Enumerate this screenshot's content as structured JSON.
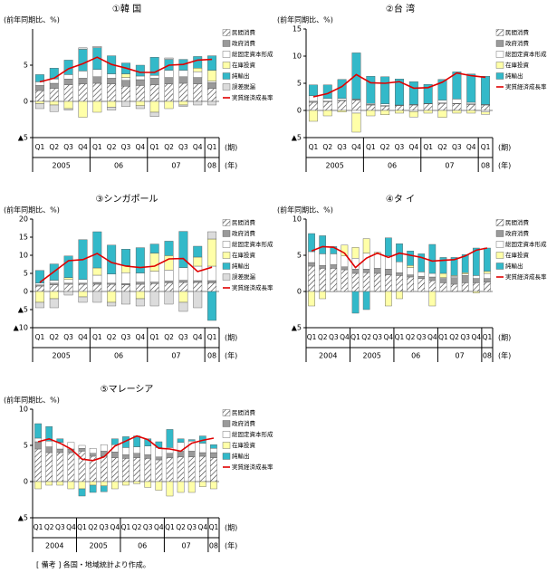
{
  "chart_data": [
    {
      "type": "bar",
      "title": "①韓 国",
      "y_label": "(前年同期比、%)",
      "x_unit": "(期)",
      "year_unit": "(年)",
      "categories": [
        "Q1",
        "Q2",
        "Q3",
        "Q4",
        "Q1",
        "Q2",
        "Q3",
        "Q4",
        "Q1",
        "Q2",
        "Q3",
        "Q4",
        "Q1"
      ],
      "years": [
        "2005",
        "06",
        "07",
        "08"
      ],
      "ylim": [
        -5,
        10
      ],
      "yticks": [
        {
          "value": -5,
          "label": "▲5"
        },
        0,
        5
      ],
      "series": [
        {
          "name": "民間消費",
          "color": "#ffffff",
          "pattern": "hatch",
          "values": [
            1.5,
            1.8,
            2.3,
            2.4,
            2.5,
            2.4,
            2.1,
            2.2,
            2.3,
            2.4,
            2.5,
            2.4,
            1.8
          ]
        },
        {
          "name": "政府消費",
          "color": "#9a9a9a",
          "values": [
            0.7,
            0.7,
            0.8,
            0.8,
            0.9,
            0.8,
            0.8,
            0.8,
            0.9,
            0.9,
            0.9,
            0.9,
            0.8
          ]
        },
        {
          "name": "総固定資本形成",
          "color": "#ffffff",
          "values": [
            0.5,
            0.6,
            0.6,
            1.0,
            1.0,
            0.6,
            0.4,
            0.5,
            0.4,
            1.0,
            0.9,
            0.8,
            0.2
          ]
        },
        {
          "name": "在庫投資",
          "color": "#ffffa8",
          "values": [
            -0.3,
            -0.5,
            -1.0,
            -2.2,
            -1.5,
            -0.8,
            0.5,
            -0.6,
            -1.5,
            -1.0,
            -0.5,
            0.5,
            1.5
          ]
        },
        {
          "name": "純輸出",
          "color": "#33b9c9",
          "values": [
            1.0,
            1.5,
            2.0,
            3.0,
            3.0,
            2.5,
            1.5,
            1.5,
            2.5,
            1.5,
            1.5,
            1.6,
            2.0
          ]
        },
        {
          "name": "誤差脱漏",
          "color": "#dcdcdc",
          "values": [
            -0.7,
            -0.9,
            -0.2,
            0.2,
            0.2,
            -0.4,
            -0.7,
            -0.4,
            -0.6,
            0.2,
            -0.2,
            -0.5,
            -0.5
          ]
        },
        {
          "name": "実質経済成長率",
          "color": "#e00000",
          "kind": "line",
          "values": [
            2.7,
            3.2,
            4.5,
            5.2,
            6.1,
            5.1,
            4.6,
            4.0,
            4.0,
            5.0,
            5.1,
            5.7,
            5.8
          ]
        }
      ]
    },
    {
      "type": "bar",
      "title": "②台 湾",
      "y_label": "(前年同期比、%)",
      "x_unit": "(期)",
      "year_unit": "(年)",
      "categories": [
        "Q1",
        "Q2",
        "Q3",
        "Q4",
        "Q1",
        "Q2",
        "Q3",
        "Q4",
        "Q1",
        "Q2",
        "Q3",
        "Q4",
        "Q1"
      ],
      "years": [
        "2005",
        "06",
        "07",
        "08"
      ],
      "ylim": [
        -5,
        15
      ],
      "yticks": [
        {
          "value": -5,
          "label": "▲5"
        },
        0,
        5,
        10,
        15
      ],
      "series": [
        {
          "name": "民間消費",
          "color": "#ffffff",
          "pattern": "hatch",
          "values": [
            1.5,
            1.6,
            1.8,
            1.9,
            1.0,
            0.8,
            0.9,
            1.0,
            1.2,
            1.3,
            1.2,
            1.1,
            1.0
          ]
        },
        {
          "name": "政府消費",
          "color": "#9a9a9a",
          "values": [
            0.2,
            0.1,
            0.1,
            0.2,
            0.1,
            0.1,
            0.1,
            0.1,
            0.1,
            0.1,
            0.1,
            0.1,
            0.1
          ]
        },
        {
          "name": "総固定資本形成",
          "color": "#ffffff",
          "values": [
            1.0,
            0.5,
            0.3,
            -0.5,
            0.2,
            0.3,
            0.0,
            -0.2,
            0.0,
            0.5,
            0.8,
            0.3,
            -0.3
          ]
        },
        {
          "name": "在庫投資",
          "color": "#ffffa8",
          "values": [
            -2.0,
            -1.0,
            -0.3,
            -3.5,
            -1.0,
            -0.8,
            -0.5,
            -1.0,
            -0.5,
            -1.3,
            -0.5,
            -0.5,
            -0.4
          ]
        },
        {
          "name": "純輸出",
          "color": "#33b9c9",
          "values": [
            2.0,
            2.5,
            3.5,
            8.5,
            5.0,
            5.0,
            4.8,
            4.2,
            3.5,
            3.8,
            5.0,
            5.2,
            5.2
          ]
        },
        {
          "name": "実質経済成長率",
          "color": "#e00000",
          "kind": "line",
          "values": [
            2.5,
            3.1,
            4.4,
            6.6,
            5.1,
            5.0,
            5.3,
            4.1,
            4.2,
            5.2,
            6.9,
            6.4,
            6.1
          ]
        }
      ]
    },
    {
      "type": "bar",
      "title": "③シンガポール",
      "y_label": "(前年同期比、%)",
      "x_unit": "(期)",
      "year_unit": "(年)",
      "categories": [
        "Q1",
        "Q2",
        "Q3",
        "Q4",
        "Q1",
        "Q2",
        "Q3",
        "Q4",
        "Q1",
        "Q2",
        "Q3",
        "Q4",
        "Q1"
      ],
      "years": [
        "2005",
        "06",
        "07",
        "08"
      ],
      "ylim": [
        -10,
        20
      ],
      "yticks": [
        {
          "value": -10,
          "label": "▲10"
        },
        {
          "value": -5,
          "label": "▲5"
        },
        0,
        5,
        10,
        15,
        20
      ],
      "series": [
        {
          "name": "民間消費",
          "color": "#ffffff",
          "pattern": "hatch",
          "values": [
            1.5,
            1.8,
            2.0,
            2.0,
            2.0,
            2.0,
            1.8,
            2.0,
            2.2,
            2.4,
            2.5,
            2.5,
            2.4
          ]
        },
        {
          "name": "政府消費",
          "color": "#9a9a9a",
          "values": [
            0.3,
            0.5,
            0.3,
            0.3,
            0.5,
            0.3,
            0.4,
            0.6,
            0.4,
            0.5,
            0.6,
            0.5,
            0.6
          ]
        },
        {
          "name": "総固定資本形成",
          "color": "#ffffff",
          "values": [
            0.5,
            0.8,
            1.0,
            1.0,
            2.0,
            2.5,
            3.0,
            2.5,
            3.0,
            3.0,
            3.5,
            4.0,
            4.0
          ]
        },
        {
          "name": "在庫投資",
          "color": "#ffffa8",
          "values": [
            -3.0,
            -2.0,
            0.5,
            -1.5,
            2.0,
            -3.0,
            2.0,
            -2.0,
            5.0,
            4.0,
            -3.0,
            2.5,
            7.5
          ]
        },
        {
          "name": "純輸出",
          "color": "#33b9c9",
          "values": [
            3.5,
            4.5,
            6.0,
            11.0,
            10.0,
            8.0,
            4.5,
            7.0,
            2.5,
            4.0,
            10.0,
            3.0,
            -8.0
          ]
        },
        {
          "name": "誤差脱漏",
          "color": "#dcdcdc",
          "values": [
            -1.5,
            -2.5,
            -1.0,
            -1.5,
            -3.0,
            -1.0,
            -3.5,
            -2.0,
            -4.0,
            -3.5,
            -2.5,
            -4.5,
            2.0
          ]
        },
        {
          "name": "実質経済成長率",
          "color": "#e00000",
          "kind": "line",
          "values": [
            2.5,
            5.5,
            8.5,
            8.8,
            10.5,
            8.0,
            7.0,
            6.6,
            7.0,
            9.0,
            9.1,
            5.5,
            6.7
          ]
        }
      ]
    },
    {
      "type": "bar",
      "title": "④タ イ",
      "y_label": "(前年同期比、%)",
      "x_unit": "(期)",
      "year_unit": "(年)",
      "categories": [
        "Q1",
        "Q2",
        "Q3",
        "Q4",
        "Q1",
        "Q2",
        "Q3",
        "Q4",
        "Q1",
        "Q2",
        "Q3",
        "Q4",
        "Q1",
        "Q2",
        "Q3",
        "Q4",
        "Q1"
      ],
      "years": [
        "2004",
        "2005",
        "06",
        "07",
        "08"
      ],
      "ylim": [
        -5,
        10
      ],
      "yticks": [
        {
          "value": -5,
          "label": "▲5"
        },
        0,
        5,
        10
      ],
      "series": [
        {
          "name": "民間消費",
          "color": "#ffffff",
          "pattern": "hatch",
          "values": [
            3.5,
            3.2,
            3.2,
            3.0,
            2.5,
            2.6,
            2.5,
            2.3,
            2.2,
            2.0,
            1.8,
            1.5,
            1.2,
            1.0,
            1.2,
            1.2,
            1.3
          ]
        },
        {
          "name": "政府消費",
          "color": "#9a9a9a",
          "values": [
            0.5,
            0.4,
            0.5,
            0.4,
            0.6,
            0.5,
            0.7,
            0.8,
            0.4,
            0.3,
            0.3,
            0.5,
            0.6,
            0.9,
            1.0,
            0.6,
            0.5
          ]
        },
        {
          "name": "総固定資本形成",
          "color": "#ffffff",
          "values": [
            1.5,
            1.6,
            1.5,
            1.5,
            1.5,
            2.2,
            2.0,
            1.8,
            1.5,
            1.0,
            0.6,
            0.5,
            0.1,
            0.2,
            0.2,
            0.4,
            0.7
          ]
        },
        {
          "name": "在庫投資",
          "color": "#ffffa8",
          "values": [
            -2.0,
            -1.0,
            0.0,
            1.5,
            1.5,
            2.0,
            0.2,
            -2.0,
            -1.0,
            0.3,
            0.0,
            -2.0,
            0.6,
            0.1,
            0.2,
            -0.2,
            0.3
          ]
        },
        {
          "name": "純輸出",
          "color": "#33b9c9",
          "values": [
            2.5,
            2.5,
            1.0,
            0.0,
            -3.0,
            -2.5,
            0.0,
            2.5,
            2.5,
            2.0,
            2.5,
            4.0,
            2.2,
            2.5,
            2.5,
            3.8,
            3.2
          ]
        },
        {
          "name": "実質経済成長率",
          "color": "#e00000",
          "kind": "line",
          "values": [
            5.6,
            6.2,
            6.1,
            5.3,
            3.3,
            4.6,
            5.3,
            4.7,
            5.3,
            5.0,
            4.7,
            4.2,
            4.3,
            4.4,
            4.9,
            5.7,
            6.0
          ]
        }
      ]
    },
    {
      "type": "bar",
      "title": "⑤マレーシア",
      "y_label": "(前年同期比、%)",
      "x_unit": "(期)",
      "year_unit": "(年)",
      "categories": [
        "Q1",
        "Q2",
        "Q3",
        "Q4",
        "Q1",
        "Q2",
        "Q3",
        "Q4",
        "Q1",
        "Q2",
        "Q3",
        "Q4",
        "Q1",
        "Q2",
        "Q3",
        "Q4",
        "Q1"
      ],
      "years": [
        "2004",
        "2005",
        "06",
        "07",
        "08"
      ],
      "ylim": [
        -5,
        10
      ],
      "yticks": [
        {
          "value": -5,
          "label": "▲5"
        },
        0,
        5,
        10
      ],
      "series": [
        {
          "name": "民間消費",
          "color": "#ffffff",
          "pattern": "hatch",
          "values": [
            4.5,
            4.0,
            4.0,
            4.0,
            4.2,
            3.5,
            3.5,
            3.3,
            3.2,
            3.3,
            3.2,
            3.0,
            3.3,
            3.4,
            3.4,
            3.5,
            3.3
          ]
        },
        {
          "name": "政府消費",
          "color": "#9a9a9a",
          "values": [
            1.0,
            0.8,
            0.5,
            0.5,
            0.4,
            0.4,
            0.7,
            0.8,
            0.5,
            0.6,
            0.5,
            0.4,
            0.6,
            0.8,
            0.8,
            0.5,
            0.7
          ]
        },
        {
          "name": "総固定資本形成",
          "color": "#ffffff",
          "values": [
            0.5,
            0.8,
            0.9,
            0.9,
            0.4,
            0.7,
            0.9,
            1.0,
            1.0,
            0.9,
            1.2,
            1.3,
            0.8,
            1.2,
            1.4,
            1.3,
            0.6
          ]
        },
        {
          "name": "在庫投資",
          "color": "#ffffa8",
          "values": [
            -1.0,
            -0.5,
            -0.5,
            -1.0,
            -1.0,
            -0.5,
            -0.6,
            -1.0,
            -0.5,
            -0.3,
            -0.8,
            -1.2,
            -2.0,
            -1.5,
            -1.5,
            -0.7,
            -1.0
          ]
        },
        {
          "name": "純輸出",
          "color": "#33b9c9",
          "values": [
            2.0,
            2.0,
            0.5,
            0.0,
            -1.0,
            -1.0,
            -0.8,
            0.8,
            1.5,
            1.5,
            1.0,
            0.8,
            2.5,
            0.5,
            0.2,
            1.0,
            0.5
          ]
        },
        {
          "name": "実質経済成長率",
          "color": "#e00000",
          "kind": "line",
          "values": [
            5.5,
            5.9,
            5.3,
            4.5,
            3.1,
            2.9,
            3.4,
            4.9,
            5.6,
            6.3,
            5.8,
            4.6,
            4.5,
            4.2,
            5.3,
            5.7,
            6.0
          ]
        }
      ]
    }
  ],
  "note": "[ 備考 ] 各国・地域統計より作成。"
}
